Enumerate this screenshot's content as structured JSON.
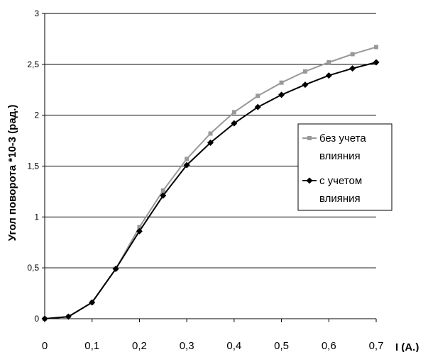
{
  "chart_data": {
    "type": "line",
    "title": "",
    "xlabel": "I (A.)",
    "ylabel": "Угол поворота *10-3 (рад.)",
    "xlim": [
      0,
      0.7
    ],
    "ylim": [
      0,
      3
    ],
    "x_ticks": [
      "0",
      "0,1",
      "0,2",
      "0,3",
      "0,4",
      "0,5",
      "0,6",
      "0,7"
    ],
    "y_ticks": [
      "0",
      "0,5",
      "1",
      "1,5",
      "2",
      "2,5",
      "3"
    ],
    "grid": "horizontal",
    "legend_position": "right",
    "x": [
      0,
      0.05,
      0.1,
      0.15,
      0.2,
      0.25,
      0.3,
      0.35,
      0.4,
      0.45,
      0.5,
      0.55,
      0.6,
      0.65,
      0.7
    ],
    "series": [
      {
        "name": "без учета влияния",
        "legend_lines": [
          "без учета",
          "влияния"
        ],
        "color": "#999999",
        "marker": "square",
        "values": [
          0,
          0.02,
          0.16,
          0.49,
          0.9,
          1.26,
          1.57,
          1.82,
          2.03,
          2.19,
          2.32,
          2.43,
          2.52,
          2.6,
          2.67
        ]
      },
      {
        "name": "с учетом влияния",
        "legend_lines": [
          "с учетом",
          "влияния"
        ],
        "color": "#000000",
        "marker": "diamond",
        "values": [
          0,
          0.02,
          0.16,
          0.49,
          0.86,
          1.21,
          1.51,
          1.73,
          1.92,
          2.08,
          2.2,
          2.3,
          2.39,
          2.46,
          2.52
        ]
      }
    ]
  }
}
